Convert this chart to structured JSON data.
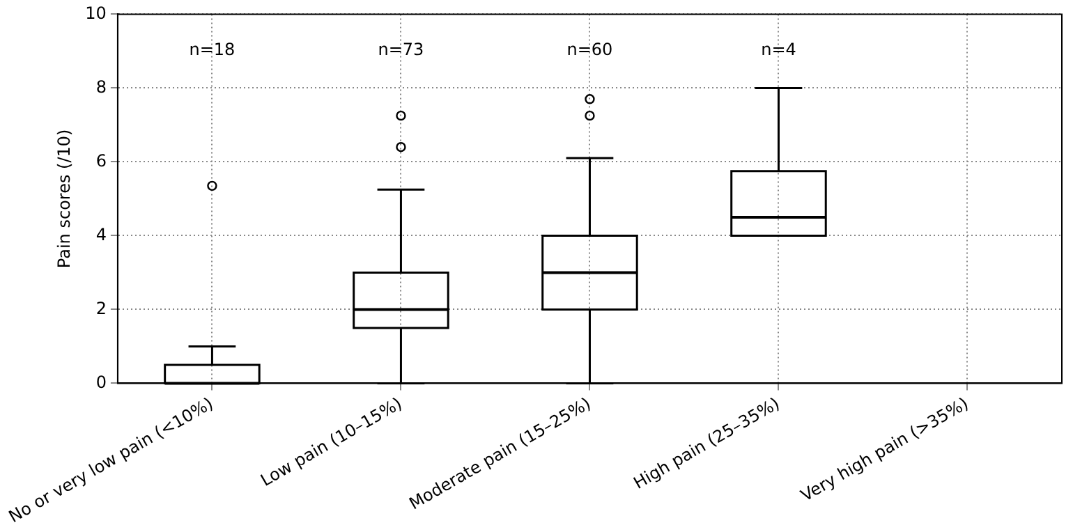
{
  "chart_data": {
    "type": "box",
    "ylabel": "Pain scores (/10)",
    "categories": [
      "No or very low pain (<10%)",
      "Low pain (10–15%)",
      "Moderate pain (15–25%)",
      "High pain (25–35%)",
      "Very high pain (>35%)"
    ],
    "boxes": [
      {
        "low": 0,
        "q1": 0,
        "median": 0,
        "q3": 0.5,
        "high": 1,
        "outliers": [
          5.35
        ]
      },
      {
        "low": 0,
        "q1": 1.5,
        "median": 2,
        "q3": 3,
        "high": 5.25,
        "outliers": [
          6.4,
          7.25
        ]
      },
      {
        "low": 0,
        "q1": 2,
        "median": 3,
        "q3": 4,
        "high": 6.1,
        "outliers": [
          7.25,
          7.7
        ]
      },
      {
        "low": 4,
        "q1": 4,
        "median": 4.5,
        "q3": 5.75,
        "high": 8
      },
      null
    ],
    "color": "#000000",
    "ylim": [
      0,
      10
    ],
    "yticks": [
      0,
      2,
      4,
      6,
      8,
      10
    ],
    "grid": true,
    "legend": false,
    "annotations": [
      "n=18",
      "n=73",
      "n=60",
      "n=4"
    ]
  }
}
